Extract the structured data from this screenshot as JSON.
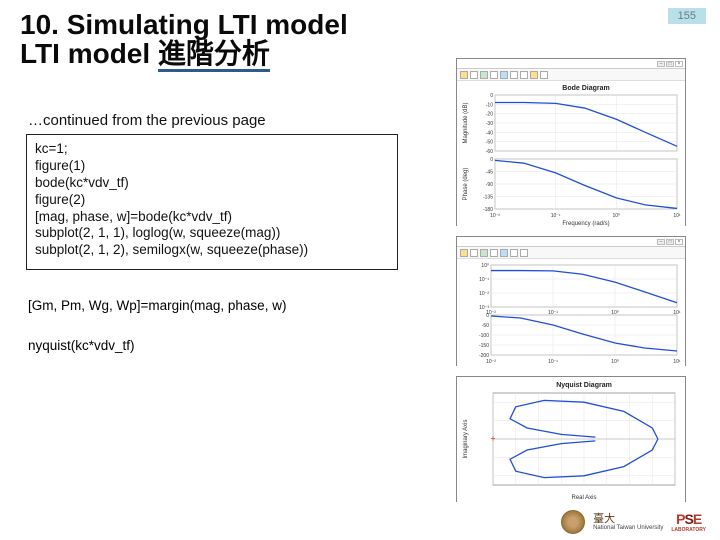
{
  "page_number": "155",
  "title_line1": "10. Simulating LTI model",
  "title_line2_a": "LTI model ",
  "title_line2_b": "進階分析",
  "continued": "…continued from the previous page",
  "code": "kc=1;\nfigure(1)\nbode(kc*vdv_tf)\nfigure(2)\n[mag, phase, w]=bode(kc*vdv_tf)\nsubplot(2, 1, 1), loglog(w, squeeze(mag))\nsubplot(2, 1, 2), semilogx(w, squeeze(phase))",
  "margin_line": "[Gm, Pm, Wg, Wp]=margin(mag, phase, w)",
  "nyq_line": "nyquist(kc*vdv_tf)",
  "footer": {
    "ntu_script": "臺大",
    "ntu_en": "National Taiwan University",
    "pse": "PSE",
    "pse_sub": "LABORATORY"
  },
  "fig1": {
    "title": "Bode Diagram",
    "mag": {
      "ylabel": "Magnitude (dB)",
      "ylim": [
        -60,
        0
      ],
      "yticks": [
        0,
        -10,
        -20,
        -30,
        -40,
        -50,
        -60
      ],
      "line_color": "#1f4fd6",
      "points": [
        [
          0.01,
          -8
        ],
        [
          0.03,
          -8
        ],
        [
          0.1,
          -9
        ],
        [
          0.3,
          -14
        ],
        [
          1,
          -26
        ],
        [
          3,
          -40
        ],
        [
          10,
          -55
        ]
      ]
    },
    "phase": {
      "ylabel": "Phase (deg)",
      "xlabel": "Frequency (rad/s)",
      "ylim": [
        -180,
        0
      ],
      "yticks": [
        0,
        -45,
        -90,
        -135,
        -180
      ],
      "line_color": "#1f4fd6",
      "points": [
        [
          0.01,
          -5
        ],
        [
          0.03,
          -15
        ],
        [
          0.1,
          -50
        ],
        [
          0.3,
          -95
        ],
        [
          1,
          -140
        ],
        [
          3,
          -165
        ],
        [
          10,
          -178
        ]
      ]
    },
    "xlim": [
      0.01,
      10
    ],
    "xticks_labels": [
      "10^{-2}",
      "10^{-1}",
      "10^{0}",
      "10^{1}"
    ],
    "grid_color": "#e5e5e5",
    "background_color": "#ffffff"
  },
  "fig2": {
    "top": {
      "ylim": [
        0.001,
        1
      ],
      "yticks_labels": [
        "10^{0}",
        "10^{-1}",
        "10^{-2}",
        "10^{-3}"
      ],
      "line_color": "#1f4fd6",
      "points": [
        [
          0.01,
          0.4
        ],
        [
          0.03,
          0.4
        ],
        [
          0.1,
          0.38
        ],
        [
          0.3,
          0.22
        ],
        [
          1,
          0.06
        ],
        [
          3,
          0.012
        ],
        [
          10,
          0.002
        ]
      ]
    },
    "bot": {
      "ylim": [
        -200,
        0
      ],
      "yticks": [
        0,
        -50,
        -100,
        -150,
        -200
      ],
      "line_color": "#1f4fd6",
      "points": [
        [
          0.01,
          -5
        ],
        [
          0.03,
          -15
        ],
        [
          0.1,
          -50
        ],
        [
          0.3,
          -95
        ],
        [
          1,
          -140
        ],
        [
          3,
          -165
        ],
        [
          10,
          -180
        ]
      ]
    },
    "xlim": [
      0.01,
      10
    ],
    "xticks_labels": [
      "10^{-2}",
      "10^{-1}",
      "10^{0}",
      "10^{1}"
    ],
    "grid_color": "#e5e5e5",
    "background_color": "#ffffff"
  },
  "fig3": {
    "title": "Nyquist Diagram",
    "xlabel": "Real Axis",
    "ylabel": "Imaginary Axis",
    "xlim": [
      -1,
      0.6
    ],
    "ylim": [
      -0.5,
      0.5
    ],
    "line_color": "#1f4fd6",
    "grid_color": "#e5e5e5",
    "background_color": "#ffffff",
    "curve_a": [
      [
        -0.1,
        0.02
      ],
      [
        -0.4,
        0.05
      ],
      [
        -0.7,
        0.12
      ],
      [
        -0.85,
        0.22
      ],
      [
        -0.8,
        0.35
      ],
      [
        -0.55,
        0.42
      ],
      [
        -0.2,
        0.4
      ],
      [
        0.15,
        0.3
      ],
      [
        0.4,
        0.12
      ],
      [
        0.45,
        0.0
      ]
    ],
    "curve_b": [
      [
        -0.1,
        -0.02
      ],
      [
        -0.4,
        -0.05
      ],
      [
        -0.7,
        -0.12
      ],
      [
        -0.85,
        -0.22
      ],
      [
        -0.8,
        -0.35
      ],
      [
        -0.55,
        -0.42
      ],
      [
        -0.2,
        -0.4
      ],
      [
        0.15,
        -0.3
      ],
      [
        0.4,
        -0.12
      ],
      [
        0.45,
        0.0
      ]
    ],
    "cross_color": "#d9534f"
  }
}
